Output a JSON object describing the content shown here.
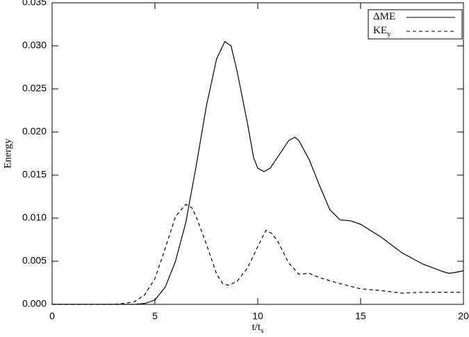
{
  "chart_data": {
    "type": "line",
    "xlabel": {
      "main": "t/t",
      "sub": "s"
    },
    "ylabel": "Energy",
    "xlim": [
      0,
      20
    ],
    "xticks": [
      0,
      5,
      10,
      15,
      20
    ],
    "ylim": [
      0,
      0.035
    ],
    "yticks": [
      {
        "value": 0,
        "label": "0.000"
      },
      {
        "value": 0.005,
        "label": "0.005"
      },
      {
        "value": 0.01,
        "label": "0.010"
      },
      {
        "value": 0.015,
        "label": "0.015"
      },
      {
        "value": 0.02,
        "label": "0.020"
      },
      {
        "value": 0.025,
        "label": "0.025"
      },
      {
        "value": 0.03,
        "label": "0.030"
      },
      {
        "value": 0.035,
        "label": "0.035"
      }
    ],
    "legend": "upper right",
    "series": [
      {
        "name": "ΔME",
        "color": "#000000",
        "line_style": "solid",
        "x": [
          0,
          2,
          4,
          4.5,
          5,
          5.5,
          6,
          6.5,
          7,
          7.5,
          8,
          8.4,
          8.7,
          9,
          9.5,
          9.8,
          10,
          10.3,
          10.6,
          11,
          11.5,
          11.8,
          12,
          12.5,
          13,
          13.5,
          14,
          14.5,
          15,
          16,
          17,
          18,
          19,
          19.3,
          19.6,
          20
        ],
        "values": [
          0,
          0,
          0,
          0.0001,
          0.0005,
          0.002,
          0.005,
          0.0095,
          0.016,
          0.023,
          0.0285,
          0.0305,
          0.03,
          0.027,
          0.021,
          0.017,
          0.0158,
          0.0154,
          0.0158,
          0.0172,
          0.019,
          0.0194,
          0.019,
          0.0168,
          0.0138,
          0.011,
          0.0098,
          0.0097,
          0.0093,
          0.0078,
          0.006,
          0.0047,
          0.0038,
          0.0036,
          0.0037,
          0.0039
        ]
      },
      {
        "name": "KE",
        "name_sub": "y",
        "color": "#000000",
        "line_style": "dashed",
        "x": [
          0,
          2,
          3,
          3.5,
          4,
          4.5,
          5,
          5.5,
          6,
          6.5,
          6.8,
          7,
          7.5,
          8,
          8.3,
          8.6,
          9,
          9.5,
          10,
          10.4,
          10.7,
          11,
          11.5,
          12,
          12.5,
          13,
          14,
          15,
          16,
          17,
          18,
          19,
          20
        ],
        "values": [
          0,
          0,
          0,
          0.0001,
          0.0003,
          0.0011,
          0.003,
          0.0065,
          0.0102,
          0.0116,
          0.0112,
          0.0102,
          0.007,
          0.0035,
          0.0024,
          0.0022,
          0.0027,
          0.0042,
          0.0067,
          0.0086,
          0.0082,
          0.0072,
          0.0048,
          0.0035,
          0.0036,
          0.0031,
          0.0024,
          0.0018,
          0.0016,
          0.0013,
          0.0014,
          0.0014,
          0.0014
        ]
      }
    ]
  }
}
